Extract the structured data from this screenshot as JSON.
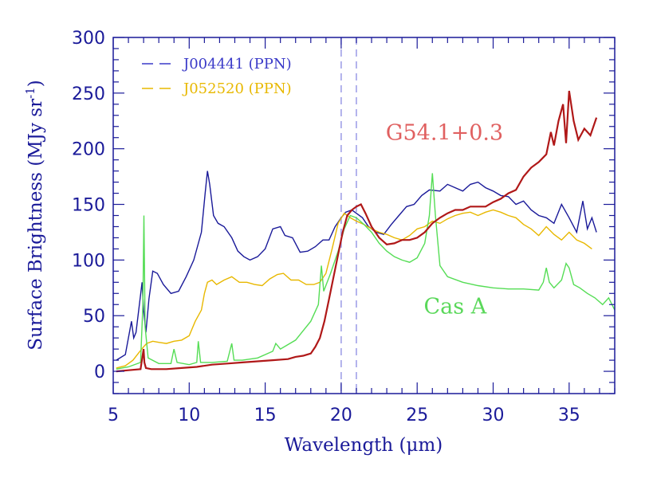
{
  "chart_data": {
    "type": "line",
    "xlabel": "Wavelength (μm)",
    "ylabel_main": "Surface Brightness (MJy sr",
    "ylabel_sup": "-1",
    "ylabel_close": ")",
    "xlim": [
      5,
      38
    ],
    "ylim": [
      -20,
      300
    ],
    "xticks": [
      5,
      10,
      15,
      20,
      25,
      30,
      35
    ],
    "yticks": [
      0,
      50,
      100,
      150,
      200,
      250,
      300
    ],
    "vlines": [
      20,
      21
    ],
    "grid": false,
    "legend": [
      {
        "label": "J004441 (PPN)",
        "color": "#3a3ac8"
      },
      {
        "label": "J052520 (PPN)",
        "color": "#e8b800"
      }
    ],
    "annotations": [
      {
        "text": "G54.1+0.3",
        "x": 26.8,
        "y": 208,
        "color": "#e06060"
      },
      {
        "text": "Cas A",
        "x": 27.5,
        "y": 52,
        "color": "#5ad85a"
      }
    ],
    "series": [
      {
        "name": "J004441 (PPN)",
        "color": "#1a1a99",
        "x": [
          5.2,
          5.8,
          6.2,
          6.35,
          6.5,
          6.9,
          7.0,
          7.15,
          7.35,
          7.6,
          7.9,
          8.3,
          8.8,
          9.3,
          9.8,
          10.3,
          10.8,
          11.05,
          11.2,
          11.35,
          11.6,
          11.9,
          12.3,
          12.8,
          13.2,
          13.6,
          14.0,
          14.5,
          15.0,
          15.5,
          16.0,
          16.3,
          16.8,
          17.3,
          17.8,
          18.3,
          18.8,
          19.2,
          19.6,
          20.0,
          20.3,
          20.7,
          21.0,
          21.4,
          21.8,
          22.3,
          22.8,
          23.3,
          23.8,
          24.3,
          24.8,
          25.3,
          25.8,
          26.5,
          27.0,
          27.5,
          28.0,
          28.5,
          29.0,
          29.5,
          30.0,
          30.5,
          31.0,
          31.5,
          32.0,
          32.5,
          33.0,
          33.5,
          34.0,
          34.5,
          35.0,
          35.5,
          35.9,
          36.2,
          36.5,
          36.8
        ],
        "y": [
          10,
          15,
          45,
          30,
          35,
          80,
          55,
          35,
          65,
          90,
          88,
          78,
          70,
          72,
          85,
          100,
          125,
          160,
          180,
          168,
          140,
          133,
          130,
          120,
          108,
          103,
          100,
          103,
          110,
          128,
          130,
          122,
          120,
          107,
          108,
          112,
          118,
          118,
          130,
          138,
          143,
          145,
          142,
          138,
          130,
          125,
          123,
          132,
          140,
          148,
          150,
          158,
          163,
          162,
          168,
          165,
          162,
          168,
          170,
          165,
          162,
          158,
          157,
          150,
          153,
          145,
          140,
          138,
          133,
          150,
          138,
          125,
          153,
          128,
          138,
          125
        ]
      },
      {
        "name": "J052520 (PPN)",
        "color": "#e8b800",
        "x": [
          5.2,
          5.8,
          6.3,
          6.7,
          7.0,
          7.2,
          7.6,
          8.0,
          8.5,
          9.0,
          9.5,
          10.0,
          10.4,
          10.8,
          11.0,
          11.2,
          11.5,
          11.8,
          12.3,
          12.8,
          13.3,
          13.8,
          14.3,
          14.8,
          15.3,
          15.8,
          16.2,
          16.7,
          17.2,
          17.7,
          18.2,
          18.6,
          19.0,
          19.4,
          19.8,
          20.2,
          20.6,
          21.0,
          21.5,
          22.0,
          22.5,
          23.0,
          23.5,
          24.0,
          24.5,
          25.0,
          25.5,
          26.0,
          26.5,
          27.0,
          27.5,
          28.0,
          28.5,
          29.0,
          29.5,
          30.0,
          30.5,
          31.0,
          31.5,
          32.0,
          32.5,
          33.0,
          33.5,
          34.0,
          34.5,
          35.0,
          35.5,
          36.0,
          36.5
        ],
        "y": [
          3,
          5,
          10,
          17,
          22,
          25,
          27,
          26,
          25,
          27,
          28,
          32,
          45,
          55,
          70,
          80,
          82,
          78,
          82,
          85,
          80,
          80,
          78,
          77,
          83,
          87,
          88,
          82,
          82,
          78,
          78,
          80,
          88,
          110,
          133,
          142,
          138,
          135,
          132,
          128,
          125,
          123,
          120,
          118,
          122,
          128,
          130,
          135,
          133,
          137,
          140,
          142,
          143,
          140,
          143,
          145,
          143,
          140,
          138,
          132,
          128,
          122,
          130,
          123,
          118,
          125,
          118,
          115,
          110
        ]
      },
      {
        "name": "",
        "color": "#55dd55",
        "x": [
          5.2,
          6.0,
          6.8,
          6.95,
          7.02,
          7.1,
          7.3,
          8.0,
          8.8,
          9.0,
          9.2,
          10.0,
          10.5,
          10.6,
          10.75,
          11.5,
          12.5,
          12.8,
          12.95,
          13.5,
          14.5,
          15.5,
          15.7,
          16.0,
          17.0,
          18.0,
          18.5,
          18.7,
          18.85,
          19.3,
          19.8,
          20.2,
          20.6,
          21.0,
          21.5,
          22.0,
          22.5,
          23.0,
          23.5,
          24.0,
          24.5,
          25.0,
          25.5,
          25.8,
          26.0,
          26.2,
          26.5,
          27.0,
          28.0,
          29.0,
          30.0,
          31.0,
          32.0,
          33.0,
          33.3,
          33.5,
          33.7,
          34.0,
          34.5,
          34.8,
          35.0,
          35.3,
          35.7,
          36.2,
          36.7,
          37.2,
          37.6,
          38.0
        ],
        "y": [
          2,
          4,
          8,
          60,
          140,
          40,
          12,
          7,
          7,
          20,
          8,
          6,
          8,
          27,
          8,
          8,
          9,
          25,
          10,
          10,
          12,
          18,
          25,
          20,
          28,
          45,
          60,
          95,
          72,
          88,
          108,
          128,
          140,
          138,
          132,
          125,
          115,
          108,
          103,
          100,
          98,
          102,
          115,
          140,
          178,
          140,
          95,
          85,
          80,
          77,
          75,
          74,
          74,
          73,
          80,
          93,
          80,
          75,
          82,
          97,
          93,
          78,
          75,
          70,
          66,
          60,
          66,
          55
        ]
      },
      {
        "name": "",
        "color": "#b01818",
        "x": [
          5.2,
          6.0,
          6.8,
          7.0,
          7.05,
          7.15,
          7.5,
          8.5,
          9.5,
          10.5,
          11.5,
          12.5,
          13.5,
          14.5,
          15.5,
          16.5,
          17.0,
          17.5,
          18.0,
          18.3,
          18.6,
          18.9,
          19.2,
          19.5,
          19.8,
          20.1,
          20.4,
          20.7,
          21.0,
          21.3,
          21.6,
          22.0,
          22.5,
          23.0,
          23.5,
          24.0,
          24.5,
          25.0,
          25.5,
          26.0,
          26.5,
          27.0,
          27.5,
          28.0,
          28.5,
          29.0,
          29.5,
          30.0,
          30.5,
          31.0,
          31.5,
          32.0,
          32.5,
          33.0,
          33.5,
          33.8,
          34.0,
          34.3,
          34.6,
          34.8,
          35.0,
          35.3,
          35.6,
          36.0,
          36.4,
          36.8
        ],
        "y": [
          0,
          1,
          2,
          20,
          8,
          3,
          2,
          2,
          3,
          4,
          6,
          7,
          8,
          9,
          10,
          11,
          13,
          14,
          16,
          22,
          30,
          45,
          65,
          85,
          105,
          125,
          140,
          145,
          148,
          150,
          142,
          130,
          120,
          114,
          115,
          118,
          118,
          120,
          125,
          133,
          138,
          142,
          145,
          145,
          148,
          148,
          148,
          152,
          155,
          160,
          163,
          175,
          183,
          188,
          195,
          215,
          203,
          225,
          240,
          205,
          252,
          225,
          208,
          218,
          212,
          228
        ]
      }
    ]
  }
}
